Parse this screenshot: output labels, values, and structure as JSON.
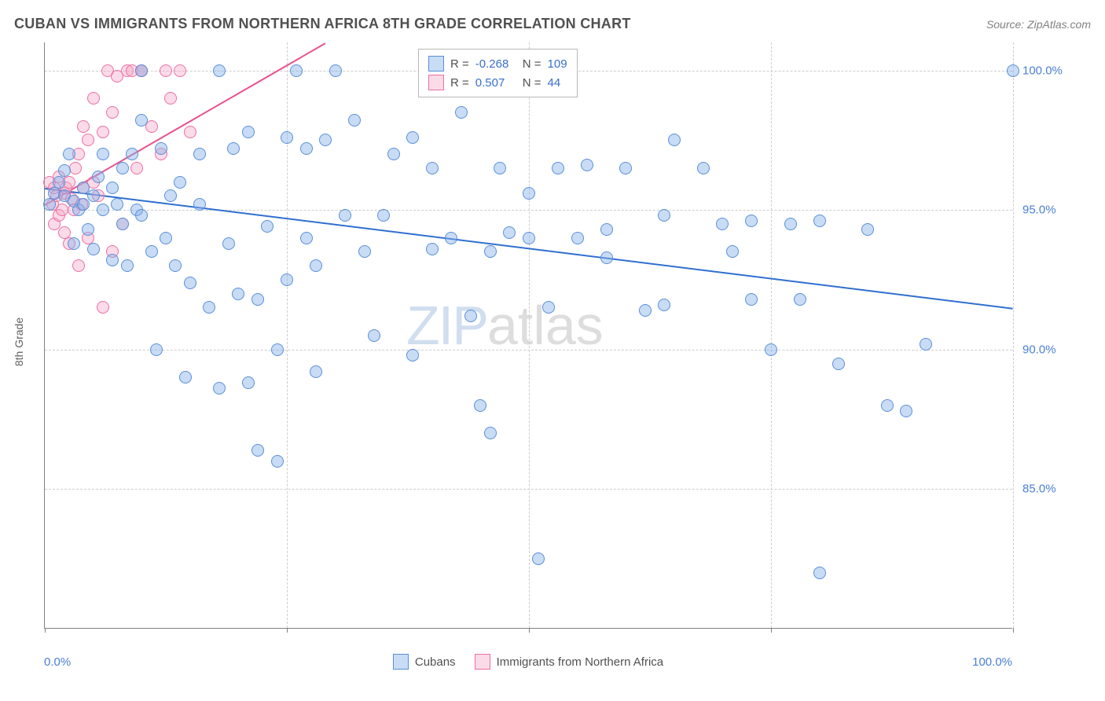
{
  "title": "CUBAN VS IMMIGRANTS FROM NORTHERN AFRICA 8TH GRADE CORRELATION CHART",
  "source": "Source: ZipAtlas.com",
  "chart": {
    "type": "scatter",
    "y_axis_label": "8th Grade",
    "x_range": [
      0,
      100
    ],
    "y_range": [
      80,
      101
    ],
    "x_ticks": [
      0,
      25,
      50,
      75,
      100
    ],
    "x_tick_labels": {
      "0": "0.0%",
      "100": "100.0%"
    },
    "y_ticks": [
      85,
      90,
      95,
      100
    ],
    "y_tick_labels": {
      "85": "85.0%",
      "90": "90.0%",
      "95": "95.0%",
      "100": "100.0%"
    },
    "grid_color": "#cccccc",
    "axis_color": "#808080",
    "background_color": "#ffffff",
    "tick_label_color": "#4a7fd4",
    "label_fontsize": 14,
    "tick_fontsize": 15,
    "marker_size": 16,
    "series": [
      {
        "name": "Cubans",
        "color_fill": "rgba(135,178,232,0.45)",
        "color_stroke": "#5a8fd8",
        "R": "-0.268",
        "N": "109",
        "trend": {
          "x1": 0,
          "y1": 95.8,
          "x2": 100,
          "y2": 91.5,
          "color": "#2f6fd0",
          "width": 2
        },
        "points": [
          [
            0.5,
            95.2
          ],
          [
            1,
            95.6
          ],
          [
            1.5,
            96.0
          ],
          [
            2,
            95.5
          ],
          [
            2,
            96.4
          ],
          [
            2.5,
            97.0
          ],
          [
            3,
            95.3
          ],
          [
            3,
            93.8
          ],
          [
            3.5,
            95.0
          ],
          [
            4,
            95.8
          ],
          [
            4,
            95.2
          ],
          [
            4.5,
            94.3
          ],
          [
            5,
            95.5
          ],
          [
            5,
            93.6
          ],
          [
            5.5,
            96.2
          ],
          [
            6,
            95.0
          ],
          [
            6,
            97.0
          ],
          [
            7,
            95.8
          ],
          [
            7,
            93.2
          ],
          [
            7.5,
            95.2
          ],
          [
            8,
            94.5
          ],
          [
            8,
            96.5
          ],
          [
            8.5,
            93.0
          ],
          [
            9,
            97.0
          ],
          [
            9.5,
            95.0
          ],
          [
            10,
            98.2
          ],
          [
            10,
            100.0
          ],
          [
            10,
            94.8
          ],
          [
            11,
            93.5
          ],
          [
            11.5,
            90.0
          ],
          [
            12,
            97.2
          ],
          [
            12.5,
            94.0
          ],
          [
            13,
            95.5
          ],
          [
            13.5,
            93.0
          ],
          [
            14,
            96.0
          ],
          [
            14.5,
            89.0
          ],
          [
            15,
            92.4
          ],
          [
            16,
            97.0
          ],
          [
            16,
            95.2
          ],
          [
            17,
            91.5
          ],
          [
            18,
            100.0
          ],
          [
            18,
            88.6
          ],
          [
            19,
            93.8
          ],
          [
            19.5,
            97.2
          ],
          [
            20,
            92.0
          ],
          [
            21,
            88.8
          ],
          [
            21,
            97.8
          ],
          [
            22,
            91.8
          ],
          [
            22,
            86.4
          ],
          [
            23,
            94.4
          ],
          [
            24,
            90.0
          ],
          [
            24,
            86.0
          ],
          [
            25,
            97.6
          ],
          [
            25,
            92.5
          ],
          [
            26,
            100.0
          ],
          [
            27,
            94.0
          ],
          [
            27,
            97.2
          ],
          [
            28,
            89.2
          ],
          [
            28,
            93.0
          ],
          [
            29,
            97.5
          ],
          [
            30,
            100.0
          ],
          [
            31,
            94.8
          ],
          [
            32,
            98.2
          ],
          [
            33,
            93.5
          ],
          [
            34,
            90.5
          ],
          [
            35,
            94.8
          ],
          [
            36,
            97.0
          ],
          [
            38,
            89.8
          ],
          [
            38,
            97.6
          ],
          [
            40,
            96.5
          ],
          [
            40,
            93.6
          ],
          [
            42,
            94.0
          ],
          [
            43,
            98.5
          ],
          [
            44,
            91.2
          ],
          [
            45,
            88.0
          ],
          [
            46,
            93.5
          ],
          [
            46,
            87.0
          ],
          [
            47,
            96.5
          ],
          [
            48,
            94.2
          ],
          [
            50,
            94.0
          ],
          [
            50,
            95.6
          ],
          [
            51,
            82.5
          ],
          [
            52,
            91.5
          ],
          [
            53,
            96.5
          ],
          [
            55,
            94.0
          ],
          [
            56,
            96.6
          ],
          [
            58,
            94.3
          ],
          [
            58,
            93.3
          ],
          [
            60,
            96.5
          ],
          [
            62,
            91.4
          ],
          [
            64,
            94.8
          ],
          [
            64,
            91.6
          ],
          [
            65,
            97.5
          ],
          [
            68,
            96.5
          ],
          [
            70,
            94.5
          ],
          [
            71,
            93.5
          ],
          [
            73,
            94.6
          ],
          [
            73,
            91.8
          ],
          [
            75,
            90.0
          ],
          [
            77,
            94.5
          ],
          [
            78,
            91.8
          ],
          [
            80,
            94.6
          ],
          [
            82,
            89.5
          ],
          [
            85,
            94.3
          ],
          [
            87,
            88.0
          ],
          [
            89,
            87.8
          ],
          [
            80,
            82.0
          ],
          [
            91,
            90.2
          ],
          [
            100,
            100.0
          ]
        ]
      },
      {
        "name": "Immigrants from Northern Africa",
        "color_fill": "rgba(245,165,195,0.4)",
        "color_stroke": "#ec6fa5",
        "R": "0.507",
        "N": "44",
        "trend": {
          "x1": 0,
          "y1": 95.2,
          "x2": 29,
          "y2": 101,
          "color": "#e8528f",
          "width": 2
        },
        "points": [
          [
            0.5,
            96.0
          ],
          [
            0.8,
            95.2
          ],
          [
            1,
            95.8
          ],
          [
            1,
            94.5
          ],
          [
            1.2,
            95.5
          ],
          [
            1.5,
            94.8
          ],
          [
            1.5,
            96.2
          ],
          [
            1.8,
            95.0
          ],
          [
            2,
            95.6
          ],
          [
            2,
            94.2
          ],
          [
            2.2,
            95.8
          ],
          [
            2.5,
            96.0
          ],
          [
            2.5,
            93.8
          ],
          [
            2.8,
            95.4
          ],
          [
            3,
            95.0
          ],
          [
            3.2,
            96.5
          ],
          [
            3.5,
            97.0
          ],
          [
            3.5,
            93.0
          ],
          [
            3.8,
            95.2
          ],
          [
            4,
            98.0
          ],
          [
            4,
            95.8
          ],
          [
            4.5,
            94.0
          ],
          [
            4.5,
            97.5
          ],
          [
            5,
            99.0
          ],
          [
            5,
            96.0
          ],
          [
            5.5,
            95.5
          ],
          [
            6,
            97.8
          ],
          [
            6,
            91.5
          ],
          [
            6.5,
            100.0
          ],
          [
            7,
            93.5
          ],
          [
            7,
            98.5
          ],
          [
            7.5,
            99.8
          ],
          [
            8,
            94.5
          ],
          [
            8.5,
            100.0
          ],
          [
            9,
            100.0
          ],
          [
            9.5,
            96.5
          ],
          [
            10,
            100.0
          ],
          [
            11,
            98.0
          ],
          [
            12,
            97.0
          ],
          [
            12.5,
            100.0
          ],
          [
            13,
            99.0
          ],
          [
            14,
            100.0
          ],
          [
            15,
            97.8
          ],
          [
            10,
            100.0
          ]
        ]
      }
    ],
    "stats_box": {
      "rows": [
        {
          "swatch": "blue",
          "r_label": "R =",
          "r_value": "-0.268",
          "n_label": "N =",
          "n_value": "109"
        },
        {
          "swatch": "pink",
          "r_label": "R =",
          "r_value": "0.507",
          "n_label": "N =",
          "n_value": "44"
        }
      ]
    },
    "bottom_legend": [
      {
        "swatch": "blue",
        "label": "Cubans"
      },
      {
        "swatch": "pink",
        "label": "Immigrants from Northern Africa"
      }
    ],
    "watermark": {
      "zip": "ZIP",
      "atlas": "atlas"
    }
  }
}
